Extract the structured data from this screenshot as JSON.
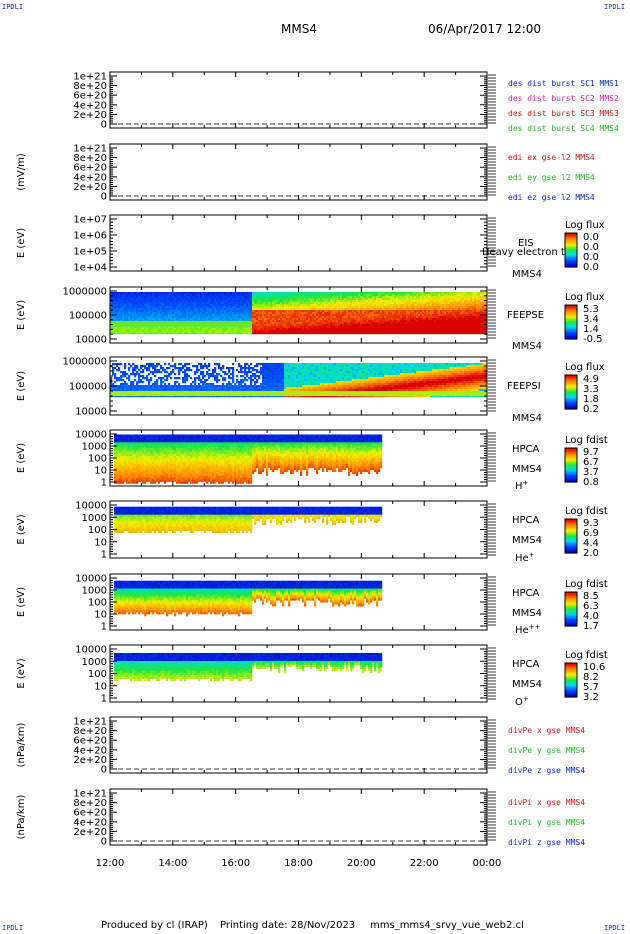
{
  "corners": {
    "tl": "IPDLI",
    "tr": "IPDLI",
    "bl": "IPDLI",
    "br": "IPDLI"
  },
  "header": {
    "spacecraft": "MMS4",
    "datetime": "06/Apr/2017 12:00"
  },
  "footer": {
    "produced_by": "Produced by cl (IRAP)",
    "printing_date": "Printing date: 28/Nov/2023",
    "script": "mms_mms4_srvy_vue_web2.cl"
  },
  "colors": {
    "black": "#000000",
    "blue": "#0a2ad0",
    "magenta": "#e020c0",
    "red": "#d81818",
    "green": "#22bb22",
    "grid": "#666666"
  },
  "chart_data": {
    "type": "heatmap",
    "x_axis": {
      "ticks": [
        "12:00",
        "14:00",
        "16:00",
        "18:00",
        "20:00",
        "22:00",
        "00:00"
      ],
      "range_hours": [
        12,
        24
      ]
    },
    "panels": [
      {
        "kind": "line",
        "ylabel": "",
        "yticks": [
          "1e+21",
          "8e+20",
          "6e+20",
          "4e+20",
          "2e+20",
          "0"
        ],
        "legend": [
          {
            "text": "des dist burst SC1 MMS1",
            "color": "#0a2ad0"
          },
          {
            "text": "des dist burst SC2 MMS2",
            "color": "#e020c0"
          },
          {
            "text": "des dist burst SC3 MMS3",
            "color": "#d81818"
          },
          {
            "text": "des dist burst SC4 MMS4",
            "color": "#22bb22"
          }
        ]
      },
      {
        "kind": "line",
        "ylabel": "(mV/m)",
        "yticks": [
          "1e+21",
          "8e+20",
          "6e+20",
          "4e+20",
          "2e+20",
          "0"
        ],
        "legend": [
          {
            "text": "edi ex gse l2 MMS4",
            "color": "#d81818"
          },
          {
            "text": "edi ey gse l2 MMS4",
            "color": "#22bb22"
          },
          {
            "text": "edi ez gse l2 MMS4",
            "color": "#0a2ad0"
          }
        ]
      },
      {
        "kind": "spec",
        "ylabel": "E (eV)",
        "yticks": [
          "1e+07",
          "1e+06",
          "1e+05",
          "1e+04"
        ],
        "inst": "EIS",
        "sc": "MMS4",
        "extra": "Heavy electron to",
        "ctitle": "Log flux",
        "cticks": [
          "0.0",
          "0.0",
          "0.0",
          "0.0"
        ],
        "data": "none"
      },
      {
        "kind": "spec",
        "ylabel": "E (eV)",
        "yticks": [
          "1000000",
          "100000",
          "10000"
        ],
        "inst": "FEEPSE",
        "sc": "MMS4",
        "ctitle": "Log flux",
        "cticks": [
          "5.3",
          "3.4",
          "1.4",
          "-0.5"
        ],
        "data": "feepse"
      },
      {
        "kind": "spec",
        "ylabel": "E (eV)",
        "yticks": [
          "1000000",
          "100000",
          "10000"
        ],
        "inst": "FEEPSI",
        "sc": "MMS4",
        "ctitle": "Log flux",
        "cticks": [
          "4.9",
          "3.3",
          "1.8",
          "0.2"
        ],
        "data": "feepsi"
      },
      {
        "kind": "spec",
        "ylabel": "E (eV)",
        "yticks": [
          "10000",
          "1000",
          "100",
          "10",
          "1"
        ],
        "inst": "HPCA",
        "sc": "MMS4",
        "species": "H+",
        "ctitle": "Log fdist",
        "cticks": [
          "9.7",
          "6.7",
          "3.7",
          "0.8"
        ],
        "data": "hplus"
      },
      {
        "kind": "spec",
        "ylabel": "E (eV)",
        "yticks": [
          "10000",
          "1000",
          "100",
          "10",
          "1"
        ],
        "inst": "HPCA",
        "sc": "MMS4",
        "species": "He+",
        "ctitle": "Log fdist",
        "cticks": [
          "9.3",
          "6.9",
          "4.4",
          "2.0"
        ],
        "data": "heplus"
      },
      {
        "kind": "spec",
        "ylabel": "E (eV)",
        "yticks": [
          "10000",
          "1000",
          "100",
          "10",
          "1"
        ],
        "inst": "HPCA",
        "sc": "MMS4",
        "species": "He++",
        "ctitle": "Log fdist",
        "cticks": [
          "8.5",
          "6.3",
          "4.0",
          "1.7"
        ],
        "data": "hepp"
      },
      {
        "kind": "spec",
        "ylabel": "E (eV)",
        "yticks": [
          "10000",
          "1000",
          "100",
          "10",
          "1"
        ],
        "inst": "HPCA",
        "sc": "MMS4",
        "species": "O+",
        "ctitle": "Log fdist",
        "cticks": [
          "10.6",
          "8.2",
          "5.7",
          "3.2"
        ],
        "data": "oplus"
      },
      {
        "kind": "line",
        "ylabel": "(nPa/km)",
        "yticks": [
          "1e+21",
          "8e+20",
          "6e+20",
          "4e+20",
          "2e+20",
          "0"
        ],
        "legend": [
          {
            "text": "divPe x gse MMS4",
            "color": "#d81818"
          },
          {
            "text": "divPe y gse MMS4",
            "color": "#22bb22"
          },
          {
            "text": "divPe z gse MMS4",
            "color": "#0a2ad0"
          }
        ]
      },
      {
        "kind": "line",
        "ylabel": "(nPa/km)",
        "yticks": [
          "1e+21",
          "8e+20",
          "6e+20",
          "4e+20",
          "2e+20",
          "0"
        ],
        "legend": [
          {
            "text": "divPi x gse MMS4",
            "color": "#d81818"
          },
          {
            "text": "divPi y gse MMS4",
            "color": "#22bb22"
          },
          {
            "text": "divPi z gse MMS4",
            "color": "#0a2ad0"
          }
        ]
      }
    ]
  }
}
